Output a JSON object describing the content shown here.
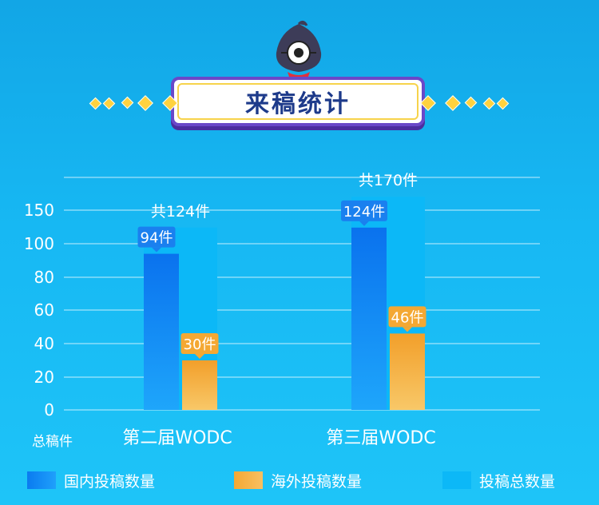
{
  "title": "来稿统计",
  "chart_data": {
    "type": "bar",
    "categories": [
      "第二届WODC",
      "第三届WODC"
    ],
    "series": [
      {
        "name": "国内投稿数量",
        "values": [
          94,
          124
        ],
        "labels": [
          "94件",
          "124件"
        ],
        "color": "#0a7bf0"
      },
      {
        "name": "海外投稿数量",
        "values": [
          30,
          46
        ],
        "labels": [
          "30件",
          "46件"
        ],
        "color": "#f4a833"
      },
      {
        "name": "投稿总数量",
        "values": [
          124,
          170
        ],
        "labels": [
          "共124件",
          "共170件"
        ],
        "color": "#0cb8f7"
      }
    ],
    "ylabel": "总稿件",
    "yticks": [
      0,
      20,
      40,
      60,
      80,
      100,
      150
    ],
    "grid": true,
    "legend": "bottom"
  },
  "legend": [
    {
      "label": "国内投稿数量",
      "color": "#0a7bf0"
    },
    {
      "label": "海外投稿数量",
      "color": "#f4a833"
    },
    {
      "label": "投稿总数量",
      "color": "#0cb8f7"
    }
  ],
  "icons": {
    "mascot": "penguin-mascot-icon",
    "decoration": "diamond-icon"
  }
}
